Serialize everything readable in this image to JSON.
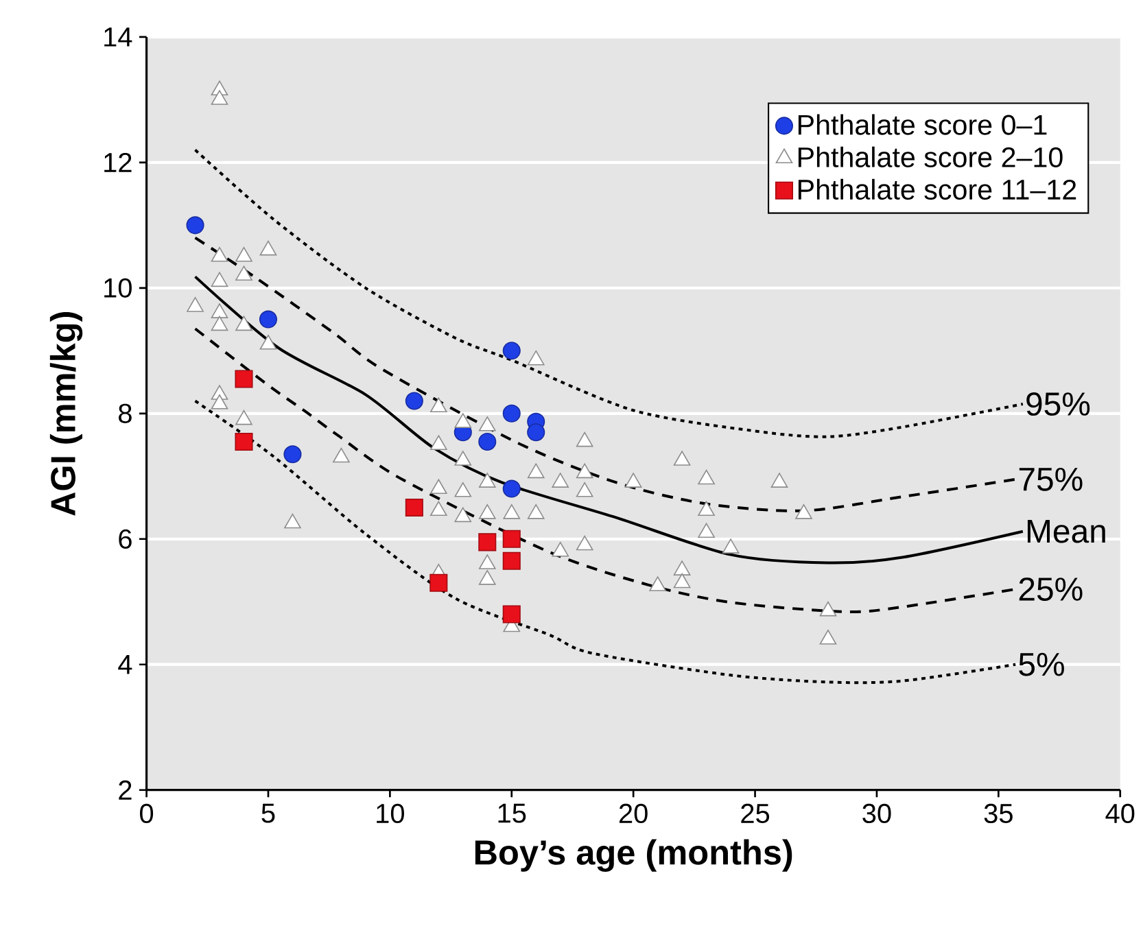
{
  "chart_data": {
    "type": "scatter",
    "xlabel": "Boy’s age (months)",
    "ylabel": "AGI (mm/kg)",
    "xlim": [
      0,
      40
    ],
    "xticks": [
      0,
      5,
      10,
      15,
      20,
      25,
      30,
      35,
      40
    ],
    "ylim": [
      2,
      14
    ],
    "yticks": [
      2,
      4,
      6,
      8,
      10,
      12,
      14
    ],
    "grid": "y",
    "legend": "top right",
    "series": [
      {
        "name": "Phthalate score 0–1",
        "marker": "circle",
        "color": "#1f3fe6",
        "x": [
          2,
          5,
          6,
          11,
          13,
          14,
          15,
          15,
          15,
          16,
          16
        ],
        "values": [
          11.0,
          9.5,
          7.35,
          8.2,
          7.7,
          7.55,
          9.0,
          8.0,
          6.8,
          7.87,
          7.7
        ]
      },
      {
        "name": "Phthalate score 2–10",
        "marker": "triangle",
        "color": "#ffffff",
        "x": [
          2,
          3,
          3,
          3,
          3,
          3,
          3,
          3,
          3,
          4,
          4,
          4,
          4,
          5,
          5,
          6,
          8,
          12,
          12,
          12,
          12,
          12,
          13,
          13,
          13,
          13,
          14,
          14,
          14,
          14,
          14,
          15,
          15,
          16,
          16,
          16,
          17,
          17,
          18,
          18,
          18,
          18,
          20,
          21,
          22,
          22,
          22,
          23,
          23,
          23,
          24,
          26,
          27,
          28,
          28
        ],
        "values": [
          9.7,
          13.15,
          13.0,
          10.5,
          10.1,
          9.6,
          9.4,
          8.3,
          8.15,
          10.5,
          10.2,
          9.4,
          7.9,
          10.6,
          9.1,
          6.25,
          7.3,
          8.1,
          7.5,
          6.8,
          6.45,
          5.45,
          7.85,
          7.25,
          6.75,
          6.35,
          7.8,
          6.9,
          6.4,
          5.6,
          5.35,
          6.4,
          4.6,
          8.85,
          7.05,
          6.4,
          6.9,
          5.8,
          7.55,
          7.05,
          6.75,
          5.9,
          6.9,
          5.25,
          7.25,
          5.5,
          5.3,
          6.95,
          6.45,
          6.1,
          5.85,
          6.9,
          6.4,
          4.85,
          4.4
        ]
      },
      {
        "name": "Phthalate score 11–12",
        "marker": "square",
        "color": "#e8101a",
        "x": [
          4,
          4,
          11,
          12,
          14,
          15,
          15,
          15
        ],
        "values": [
          8.55,
          7.55,
          6.5,
          5.3,
          5.95,
          6.0,
          5.65,
          4.8
        ]
      },
      {
        "name": "95%",
        "type": "line",
        "marker": "none",
        "line_style": "dotted",
        "color": "#000000",
        "x": [
          2,
          5.2,
          9,
          12.7,
          15,
          20,
          25,
          28,
          31,
          36
        ],
        "values": [
          12.2,
          11.1,
          10.0,
          9.2,
          8.85,
          8.05,
          7.72,
          7.63,
          7.78,
          8.15
        ]
      },
      {
        "name": "75%",
        "type": "line",
        "marker": "none",
        "line_style": "dashed",
        "color": "#000000",
        "x": [
          2,
          4.5,
          7.7,
          9.7,
          15.2,
          19.3,
          23,
          27,
          31,
          35.7
        ],
        "values": [
          10.8,
          10.16,
          9.28,
          8.7,
          7.54,
          6.9,
          6.56,
          6.45,
          6.67,
          6.95
        ]
      },
      {
        "name": "Mean",
        "type": "line",
        "marker": "none",
        "line_style": "solid",
        "color": "#000000",
        "x": [
          2,
          5.4,
          9,
          11.8,
          14.6,
          19.3,
          24,
          28,
          31.1,
          36
        ],
        "values": [
          10.18,
          9.05,
          8.3,
          7.45,
          6.9,
          6.34,
          5.75,
          5.62,
          5.71,
          6.12
        ]
      },
      {
        "name": "25%",
        "type": "line",
        "marker": "none",
        "line_style": "dashed",
        "color": "#000000",
        "x": [
          2,
          5,
          6.5,
          7.9,
          10.5,
          16.5,
          20.6,
          24,
          28.7,
          31.1,
          35.7
        ],
        "values": [
          9.35,
          8.45,
          8.04,
          7.64,
          6.95,
          5.8,
          5.27,
          4.99,
          4.84,
          4.92,
          5.2
        ]
      },
      {
        "name": "5%",
        "type": "line",
        "marker": "none",
        "line_style": "dotted",
        "color": "#000000",
        "x": [
          2,
          5.2,
          9,
          12.7,
          16.5,
          18.3,
          24,
          28,
          31.1,
          35.7
        ],
        "values": [
          8.2,
          7.32,
          6.08,
          5.05,
          4.48,
          4.18,
          3.83,
          3.72,
          3.74,
          4.0
        ]
      }
    ]
  }
}
